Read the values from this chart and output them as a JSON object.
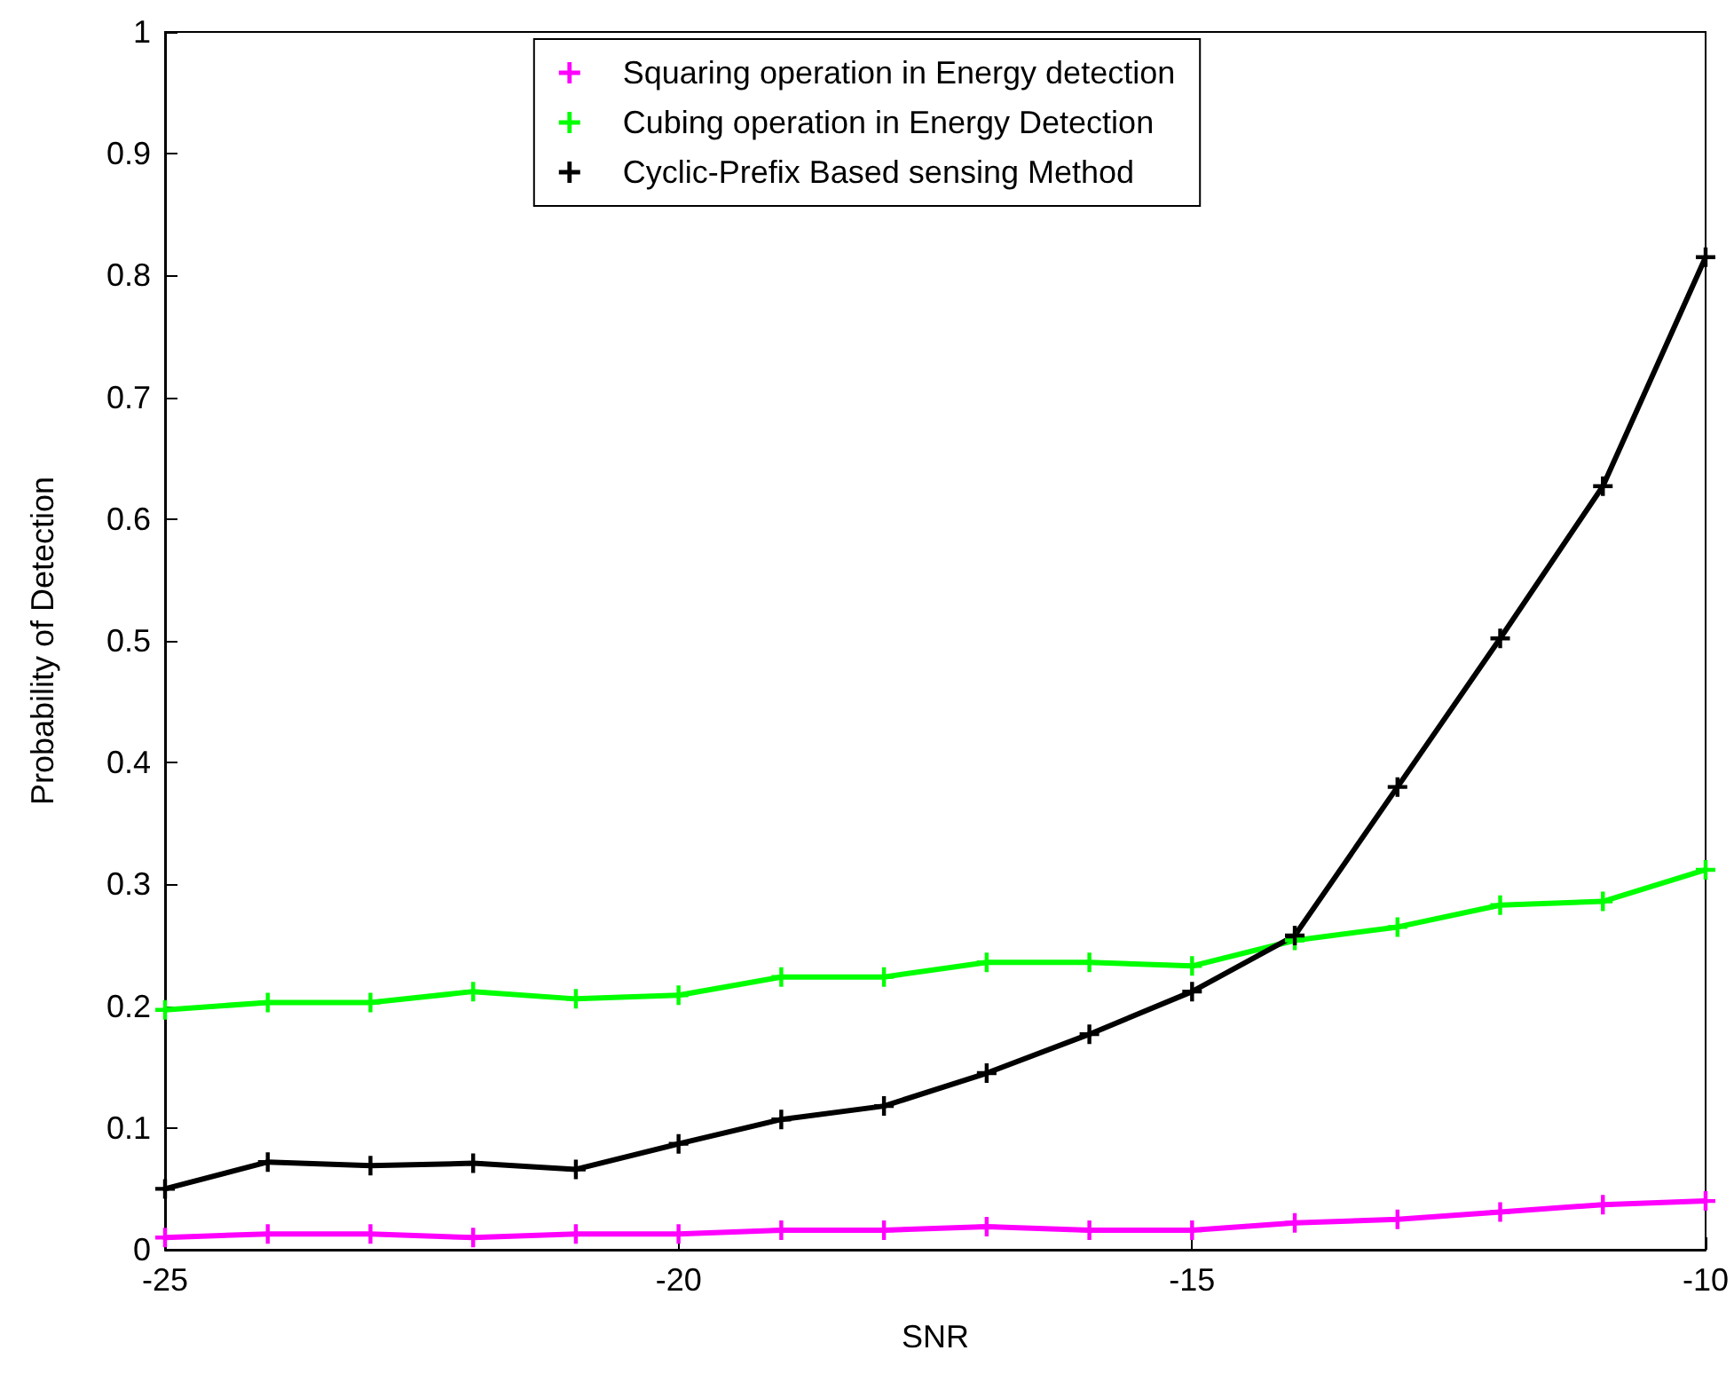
{
  "chart_data": {
    "type": "line",
    "xlabel": "SNR",
    "ylabel": "Probability of Detection",
    "x": [
      -25,
      -24,
      -23,
      -22,
      -21,
      -20,
      -19,
      -18,
      -17,
      -16,
      -15,
      -14,
      -13,
      -12,
      -11,
      -10
    ],
    "xlim": [
      -25,
      -10
    ],
    "xticks": [
      -25,
      -20,
      -15,
      -10
    ],
    "ylim": [
      0,
      1
    ],
    "yticks": [
      0,
      0.1,
      0.2,
      0.3,
      0.4,
      0.5,
      0.6,
      0.7,
      0.8,
      0.9,
      1
    ],
    "grid": false,
    "legend": "top",
    "marker": "cross",
    "line_style": "solid",
    "series": [
      {
        "name": "Squaring operation in Energy detection",
        "color": "#ff00ff",
        "values": [
          0.01,
          0.013,
          0.013,
          0.01,
          0.013,
          0.013,
          0.016,
          0.016,
          0.019,
          0.016,
          0.016,
          0.022,
          0.025,
          0.031,
          0.037,
          0.04
        ]
      },
      {
        "name": "Cubing operation in Energy Detection",
        "color": "#00ff00",
        "values": [
          0.197,
          0.203,
          0.203,
          0.212,
          0.206,
          0.209,
          0.224,
          0.224,
          0.236,
          0.236,
          0.233,
          0.254,
          0.265,
          0.283,
          0.286,
          0.312
        ]
      },
      {
        "name": "Cyclic-Prefix Based sensing Method",
        "color": "#000000",
        "values": [
          0.05,
          0.072,
          0.069,
          0.071,
          0.066,
          0.087,
          0.107,
          0.118,
          0.145,
          0.177,
          0.212,
          0.258,
          0.38,
          0.502,
          0.627,
          0.815
        ]
      }
    ]
  }
}
